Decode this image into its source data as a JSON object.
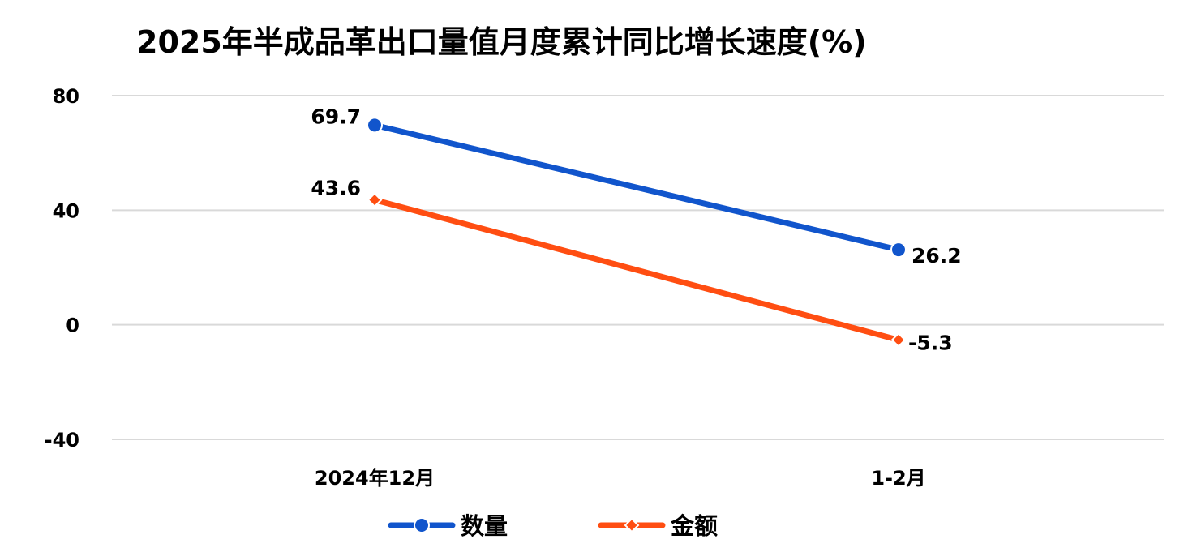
{
  "chart_data": {
    "type": "line",
    "title": "2025年半成品革出口量值月度累计同比增长速度(%)",
    "categories": [
      "2024年12月",
      "1-2月"
    ],
    "series": [
      {
        "name": "数量",
        "values": [
          69.7,
          26.2
        ],
        "color": "#1155CC",
        "marker": "circle"
      },
      {
        "name": "金额",
        "values": [
          43.6,
          -5.3
        ],
        "color": "#FF4E12",
        "marker": "diamond"
      }
    ],
    "ylim": [
      -40,
      80
    ],
    "yticks": [
      80,
      40,
      0,
      -40
    ],
    "xlabel": "",
    "ylabel": "",
    "grid": true,
    "legend_position": "bottom"
  }
}
